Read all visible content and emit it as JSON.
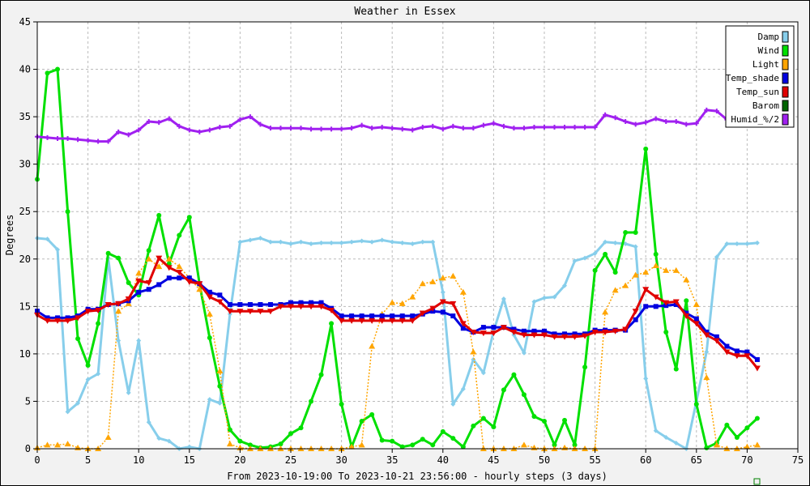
{
  "chart_data": {
    "type": "line",
    "title": "Weather in Essex",
    "xlabel": "From 2023-10-19:00 To 2023-10-21 23:56:00 - hourly steps (3 days)",
    "ylabel": "Degrees",
    "xlim": [
      0,
      75
    ],
    "ylim": [
      0,
      45
    ],
    "x_ticks": [
      0,
      5,
      10,
      15,
      20,
      25,
      30,
      35,
      40,
      45,
      50,
      55,
      60,
      65,
      70,
      75
    ],
    "y_ticks": [
      0,
      5,
      10,
      15,
      20,
      25,
      30,
      35,
      40,
      45
    ],
    "grid": true,
    "legend_position": "top-right",
    "series": [
      {
        "name": "Damp",
        "color": "#87ceeb",
        "marker": "diamond",
        "values": [
          22.2,
          22.1,
          21,
          3.9,
          4.8,
          7.3,
          7.9,
          20.1,
          11.4,
          5.9,
          11.4,
          2.8,
          1.1,
          0.8,
          0,
          0.2,
          0,
          5.2,
          4.8,
          14.2,
          21.8,
          22,
          22.2,
          21.8,
          21.8,
          21.6,
          21.8,
          21.6,
          21.7,
          21.7,
          21.7,
          21.8,
          21.9,
          21.8,
          22,
          21.8,
          21.7,
          21.6,
          21.8,
          21.8,
          16.5,
          4.7,
          6.3,
          9.4,
          8,
          12.4,
          15.8,
          12,
          10.1,
          15.5,
          15.9,
          16,
          17.2,
          19.8,
          20.1,
          20.6,
          21.8,
          21.7,
          21.6,
          21.3,
          7.4,
          1.9,
          1.2,
          0.6,
          0,
          5,
          10.2,
          20.2,
          21.6,
          21.6,
          21.6,
          21.7
        ]
      },
      {
        "name": "Wind",
        "color": "#00e000",
        "marker": "circle",
        "values": [
          28.4,
          39.6,
          40,
          25,
          11.6,
          8.8,
          13.2,
          20.6,
          20.1,
          17.5,
          16.2,
          20.9,
          24.6,
          19.5,
          22.5,
          24.4,
          17.4,
          11.7,
          6.6,
          2,
          0.8,
          0.4,
          0.1,
          0.2,
          0.5,
          1.6,
          2.2,
          5,
          7.8,
          13.2,
          4.7,
          0.2,
          2.9,
          3.6,
          0.9,
          0.8,
          0.2,
          0.4,
          1,
          0.4,
          1.8,
          1.1,
          0.2,
          2.4,
          3.2,
          2.3,
          6.2,
          7.8,
          5.7,
          3.4,
          2.9,
          0.4,
          3,
          0.4,
          8.6,
          18.8,
          20.5,
          18.6,
          22.8,
          22.8,
          31.6,
          20.5,
          12.3,
          8.4,
          15.6,
          4.7,
          0.1,
          0.6,
          2.5,
          1.2,
          2.2,
          3.2
        ]
      },
      {
        "name": "Light",
        "color": "#ffa500",
        "marker": "triangle",
        "values": [
          0.1,
          0.4,
          0.4,
          0.5,
          0.1,
          0,
          0,
          1.2,
          14.5,
          15.3,
          18.5,
          20,
          19.2,
          20,
          19.2,
          18,
          16.8,
          14.2,
          8.2,
          0.5,
          0.1,
          0,
          0,
          0,
          0,
          0,
          0,
          0,
          0,
          0,
          0,
          0.2,
          0.4,
          10.8,
          14.2,
          15.4,
          15.3,
          16,
          17.4,
          17.6,
          18,
          18.2,
          16.5,
          10.2,
          0,
          0,
          0,
          0,
          0.4,
          0.1,
          0,
          0,
          0.1,
          0,
          0,
          0,
          14.4,
          16.7,
          17.2,
          18.3,
          18.6,
          19.3,
          18.8,
          18.8,
          17.8,
          15.2,
          7.5,
          0.4,
          0,
          0,
          0.2,
          0.4
        ]
      },
      {
        "name": "Temp_shade",
        "color": "#0000e0",
        "marker": "square",
        "values": [
          14.5,
          13.8,
          13.8,
          13.8,
          14,
          14.7,
          14.7,
          15.2,
          15.3,
          15.6,
          16.5,
          16.8,
          17.3,
          18,
          18,
          18,
          17.4,
          16.5,
          16.2,
          15.2,
          15.2,
          15.2,
          15.2,
          15.2,
          15.2,
          15.4,
          15.4,
          15.4,
          15.4,
          14.8,
          14,
          14,
          14,
          14,
          14,
          14,
          14,
          14,
          14.2,
          14.5,
          14.4,
          14,
          12.7,
          12.3,
          12.8,
          12.8,
          12.8,
          12.6,
          12.4,
          12.4,
          12.4,
          12.1,
          12.1,
          12.1,
          12.1,
          12.5,
          12.5,
          12.5,
          12.5,
          13.6,
          15,
          15,
          15.1,
          15.2,
          14.3,
          13.7,
          12.3,
          11.8,
          10.8,
          10.3,
          10.2,
          9.4
        ]
      },
      {
        "name": "Temp_sun",
        "color": "#e00000",
        "marker": "triangle-down",
        "values": [
          14.1,
          13.5,
          13.5,
          13.5,
          13.8,
          14.5,
          14.6,
          15.2,
          15.3,
          15.8,
          17.7,
          17.5,
          20.1,
          19.1,
          18.6,
          17.6,
          17.4,
          16,
          15.5,
          14.5,
          14.5,
          14.5,
          14.5,
          14.5,
          15,
          15,
          15,
          15,
          15,
          14.6,
          13.5,
          13.5,
          13.5,
          13.5,
          13.5,
          13.5,
          13.5,
          13.5,
          14.3,
          14.8,
          15.5,
          15.3,
          13.2,
          12.3,
          12.2,
          12.2,
          12.8,
          12.3,
          12,
          12,
          12,
          11.8,
          11.8,
          11.8,
          11.9,
          12.3,
          12.3,
          12.4,
          12.6,
          14.5,
          16.8,
          16,
          15.4,
          15.5,
          14,
          13.2,
          12,
          11.4,
          10.2,
          9.8,
          9.8,
          8.5
        ]
      },
      {
        "name": "Barom",
        "color": "#006400",
        "marker": "none",
        "values": []
      },
      {
        "name": "Humid_%/2",
        "color": "#a020f0",
        "marker": "cross",
        "values": [
          32.9,
          32.8,
          32.7,
          32.7,
          32.6,
          32.5,
          32.4,
          32.4,
          33.4,
          33.1,
          33.6,
          34.5,
          34.4,
          34.8,
          34,
          33.6,
          33.4,
          33.6,
          33.9,
          34,
          34.7,
          35,
          34.2,
          33.8,
          33.8,
          33.8,
          33.8,
          33.7,
          33.7,
          33.7,
          33.7,
          33.8,
          34.1,
          33.8,
          33.9,
          33.8,
          33.7,
          33.6,
          33.9,
          34,
          33.7,
          34,
          33.8,
          33.8,
          34.1,
          34.3,
          34,
          33.8,
          33.8,
          33.9,
          33.9,
          33.9,
          33.9,
          33.9,
          33.9,
          33.9,
          35.2,
          34.9,
          34.5,
          34.2,
          34.4,
          34.8,
          34.5,
          34.5,
          34.2,
          34.3,
          35.7,
          35.6,
          34.7
        ]
      }
    ]
  }
}
